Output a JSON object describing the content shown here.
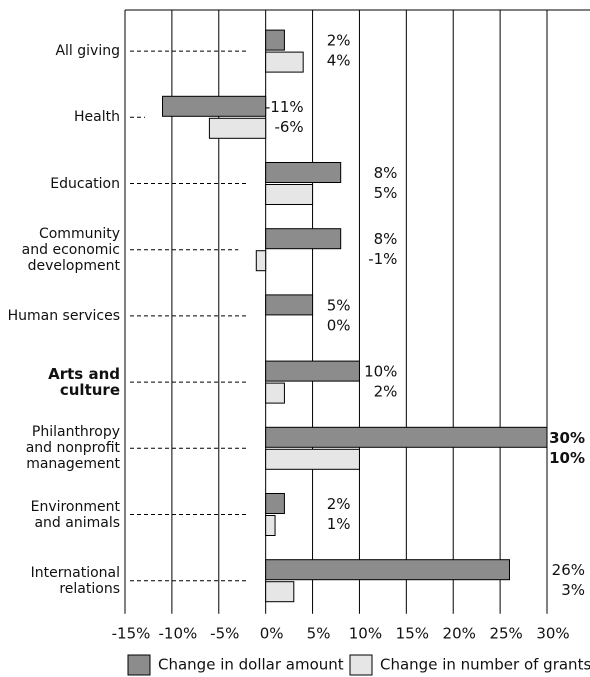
{
  "chart_data": {
    "type": "bar",
    "orientation": "horizontal",
    "categories": [
      "All giving",
      "Health",
      "Education",
      "Community\nand economic\ndevelopment",
      "Human services",
      "Arts and\nculture",
      "Philanthropy\nand nonprofit\nmanagement",
      "Environment\nand animals",
      "International\nrelations"
    ],
    "series": [
      {
        "name": "Change in dollar amount",
        "color": "#8c8c8c",
        "values": [
          2,
          -11,
          8,
          8,
          5,
          10,
          30,
          2,
          26
        ],
        "value_labels": [
          "2%",
          "-11%",
          "8%",
          "8%",
          "5%",
          "10%",
          "30%",
          "2%",
          "26%"
        ]
      },
      {
        "name": "Change in number of grants",
        "color": "#e6e6e6",
        "values": [
          4,
          -6,
          5,
          -1,
          0,
          2,
          10,
          1,
          3
        ],
        "value_labels": [
          "4%",
          "-6%",
          "5%",
          "-1%",
          "0%",
          "2%",
          "10%",
          "1%",
          "3%"
        ]
      }
    ],
    "xlim": [
      -15,
      30
    ],
    "xticks": [
      {
        "value": -15,
        "label": "-15%"
      },
      {
        "value": -10,
        "label": "-10%"
      },
      {
        "value": -5,
        "label": "-5%"
      },
      {
        "value": 0,
        "label": "0%"
      },
      {
        "value": 5,
        "label": "5%"
      },
      {
        "value": 10,
        "label": "10%"
      },
      {
        "value": 15,
        "label": "15%"
      },
      {
        "value": 20,
        "label": "20%"
      },
      {
        "value": 25,
        "label": "25%"
      },
      {
        "value": 30,
        "label": "30%"
      }
    ],
    "grid": true,
    "legend": "bottom",
    "emphasis": {
      "category": 5,
      "value_labels": 6
    }
  }
}
